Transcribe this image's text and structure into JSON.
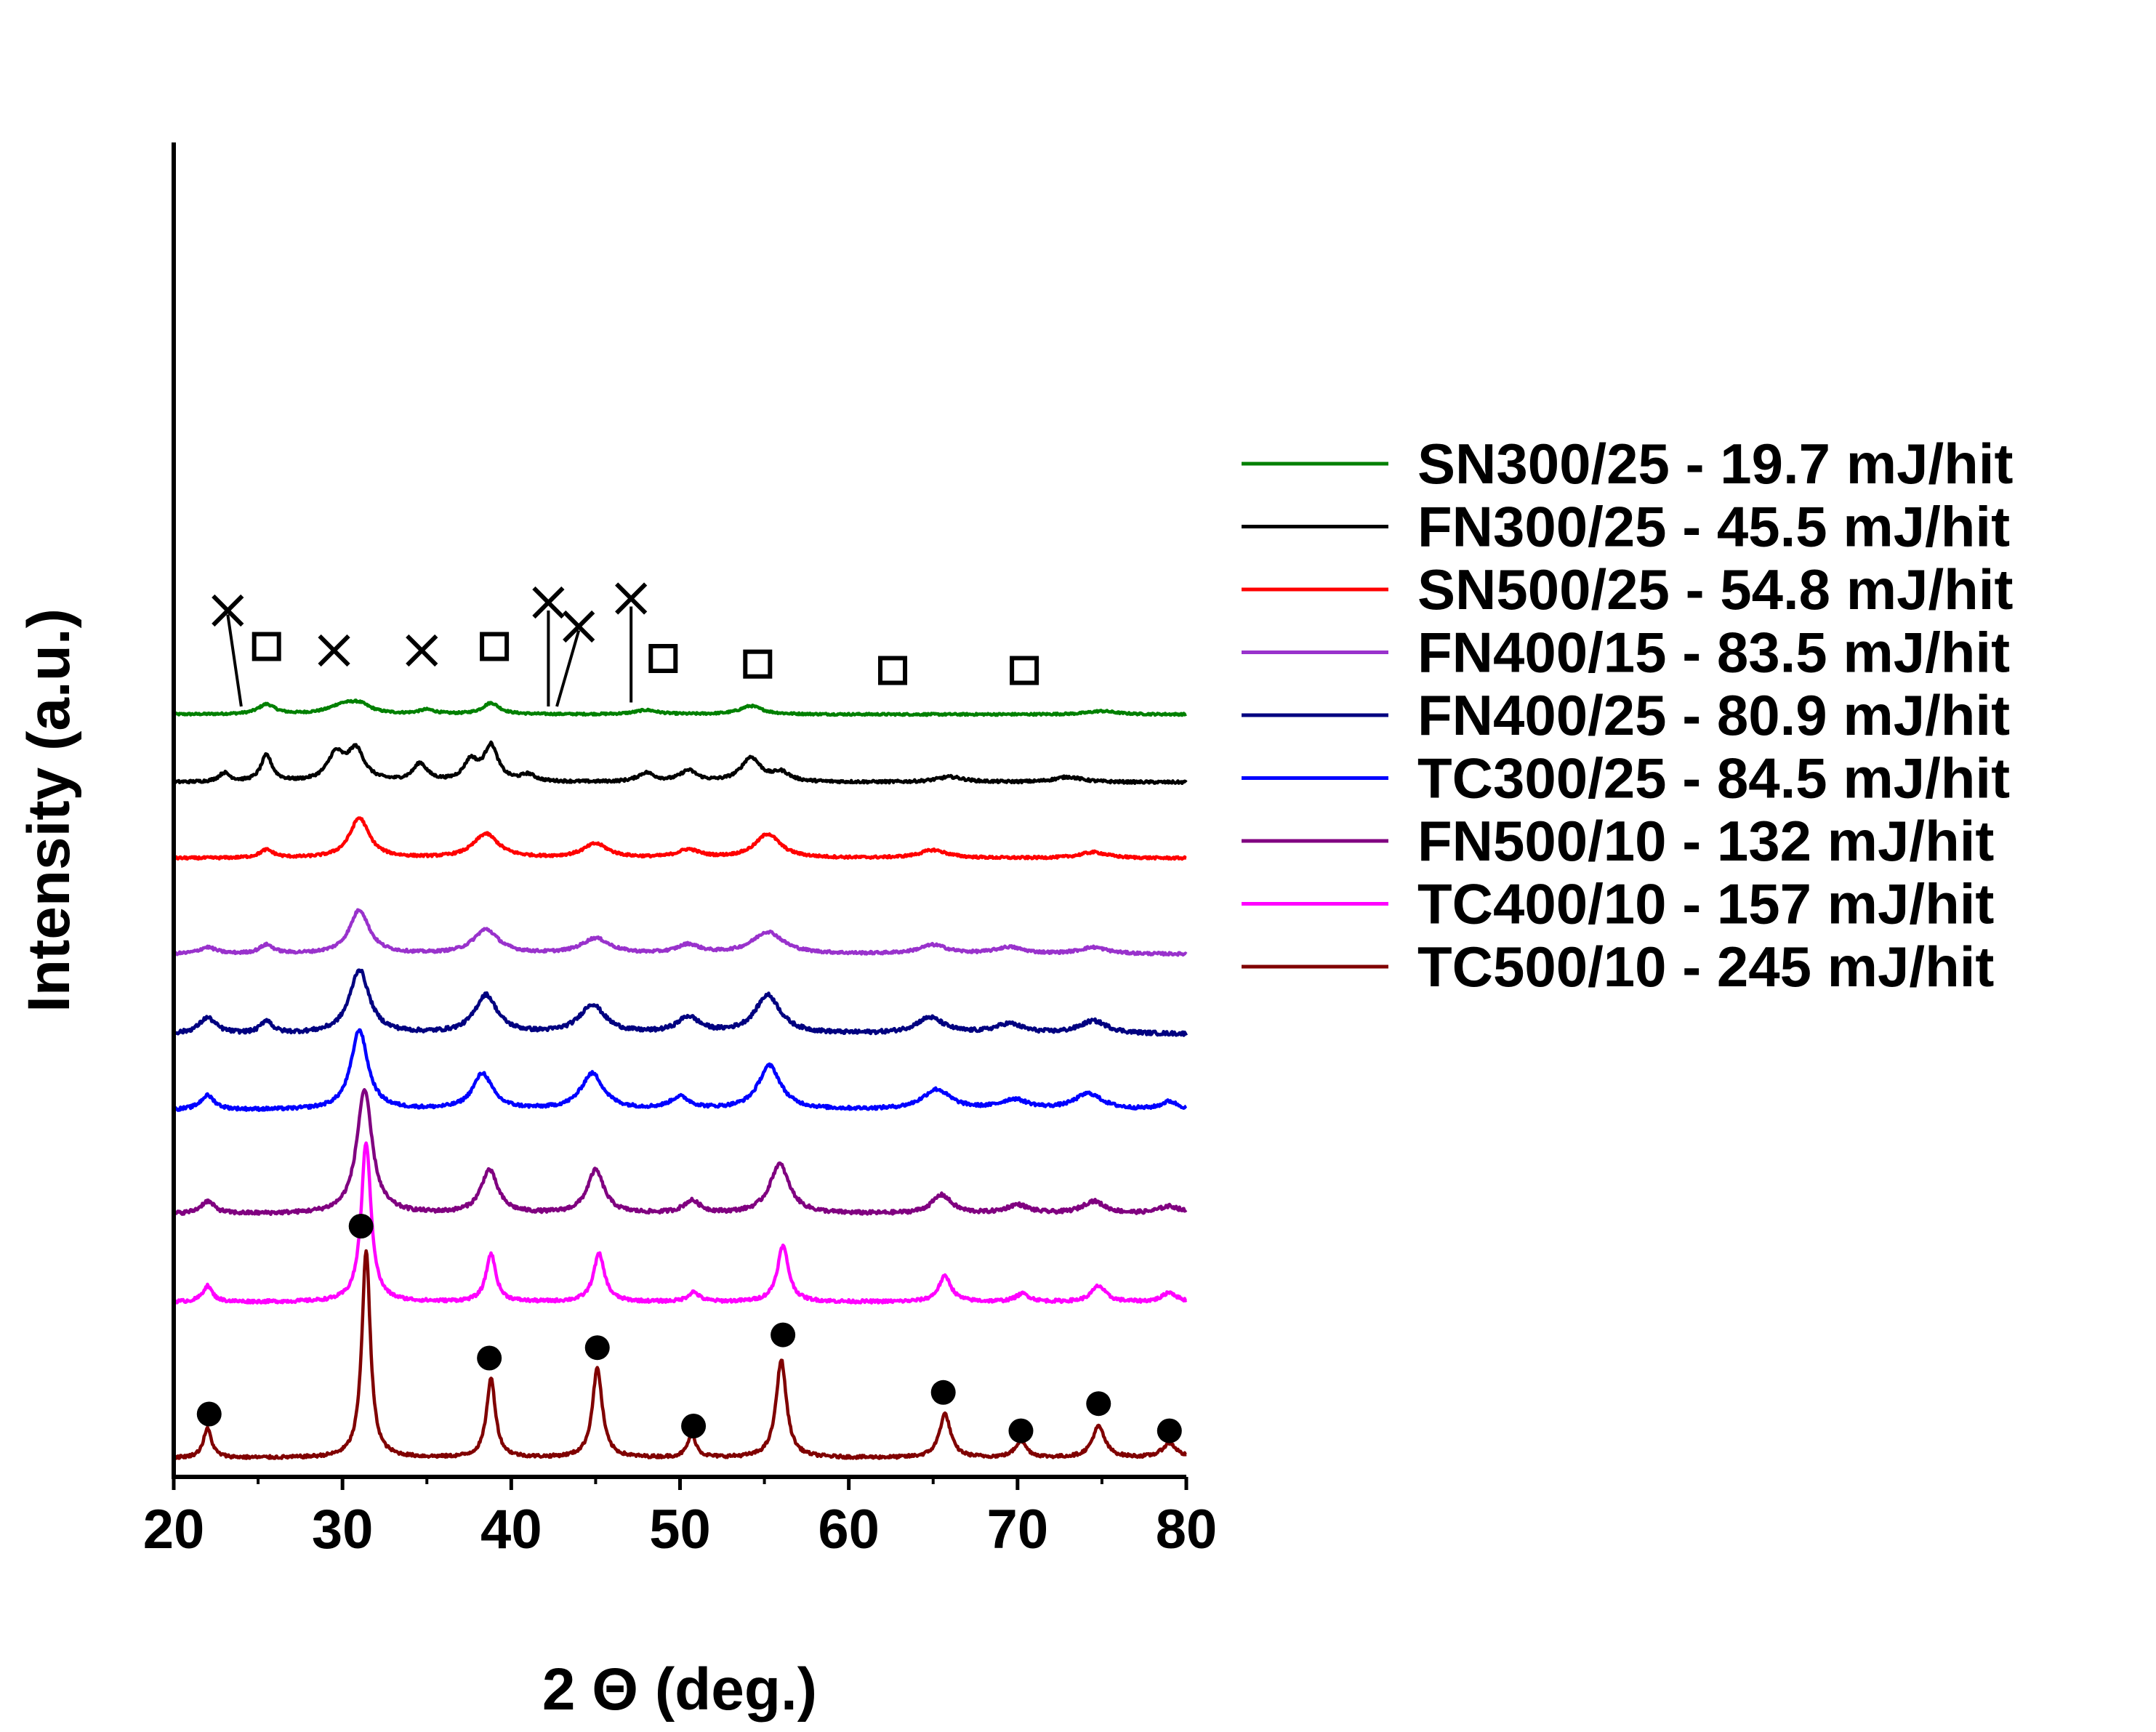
{
  "chart_data": {
    "type": "line",
    "title": "",
    "xlabel": "2 Θ (deg.)",
    "ylabel": "Intensity (a.u.)",
    "xlim": [
      20,
      80
    ],
    "x_ticks": [
      "20",
      "30",
      "40",
      "50",
      "60",
      "70",
      "80"
    ],
    "grid": false,
    "legend_position": "right",
    "series": [
      {
        "name": "SN300/25 - 19.7 mJ/hit",
        "color": "#008000",
        "offset": 9.3,
        "scale": 0.35,
        "noise": 0.07,
        "peaks": [
          [
            25.5,
            0.35,
            0.6
          ],
          [
            30,
            0.3,
            1.0
          ],
          [
            31,
            0.3,
            0.8
          ],
          [
            35,
            0.15,
            0.6
          ],
          [
            38.8,
            0.4,
            0.6
          ],
          [
            48,
            0.15,
            0.8
          ],
          [
            54.2,
            0.3,
            0.8
          ],
          [
            75,
            0.12,
            1.0
          ]
        ]
      },
      {
        "name": "FN300/25 - 45.5 mJ/hit",
        "color": "#000000",
        "offset": 8.45,
        "scale": 0.55,
        "noise": 0.06,
        "peaks": [
          [
            23,
            0.2,
            0.4
          ],
          [
            25.5,
            0.6,
            0.4
          ],
          [
            29.6,
            0.6,
            0.6
          ],
          [
            30.8,
            0.7,
            0.6
          ],
          [
            34.6,
            0.4,
            0.5
          ],
          [
            37.6,
            0.45,
            0.5
          ],
          [
            38.8,
            0.8,
            0.5
          ],
          [
            41,
            0.15,
            0.5
          ],
          [
            48,
            0.2,
            0.6
          ],
          [
            50.5,
            0.25,
            0.6
          ],
          [
            54.2,
            0.55,
            0.7
          ],
          [
            56,
            0.2,
            0.6
          ],
          [
            66,
            0.12,
            1.0
          ],
          [
            73,
            0.12,
            1.0
          ]
        ]
      },
      {
        "name": "SN500/25 - 54.8 mJ/hit",
        "color": "#ff0000",
        "offset": 7.5,
        "scale": 0.5,
        "noise": 0.06,
        "peaks": [
          [
            25.5,
            0.2,
            0.5
          ],
          [
            31,
            1.0,
            0.7
          ],
          [
            38.5,
            0.6,
            0.9
          ],
          [
            45,
            0.35,
            0.9
          ],
          [
            50.5,
            0.2,
            0.8
          ],
          [
            55.2,
            0.6,
            0.9
          ],
          [
            65,
            0.2,
            1.0
          ],
          [
            74.5,
            0.15,
            1.0
          ]
        ]
      },
      {
        "name": "FN400/15 - 83.5 mJ/hit",
        "color": "#9932cc",
        "offset": 6.3,
        "scale": 0.55,
        "noise": 0.06,
        "peaks": [
          [
            22,
            0.15,
            0.6
          ],
          [
            25.5,
            0.2,
            0.5
          ],
          [
            31,
            1.0,
            0.7
          ],
          [
            38.5,
            0.55,
            0.9
          ],
          [
            45,
            0.35,
            1.0
          ],
          [
            50.5,
            0.2,
            0.8
          ],
          [
            55.2,
            0.5,
            1.1
          ],
          [
            65,
            0.2,
            1.0
          ],
          [
            69.5,
            0.15,
            1.0
          ],
          [
            74.5,
            0.15,
            1.0
          ]
        ]
      },
      {
        "name": "FN400/25 - 80.9 mJ/hit",
        "color": "#000080",
        "offset": 5.3,
        "scale": 0.8,
        "noise": 0.06,
        "peaks": [
          [
            22,
            0.25,
            0.6
          ],
          [
            25.5,
            0.2,
            0.4
          ],
          [
            31,
            1.0,
            0.7
          ],
          [
            38.5,
            0.6,
            0.8
          ],
          [
            44.8,
            0.45,
            0.9
          ],
          [
            50.5,
            0.25,
            0.8
          ],
          [
            55.2,
            0.6,
            0.9
          ],
          [
            64.8,
            0.25,
            1.0
          ],
          [
            69.5,
            0.15,
            1.0
          ],
          [
            74.5,
            0.2,
            1.0
          ]
        ]
      },
      {
        "name": "TC300/25 - 84.5 mJ/hit",
        "color": "#0000ff",
        "offset": 4.35,
        "scale": 1.0,
        "noise": 0.04,
        "peaks": [
          [
            22,
            0.18,
            0.5
          ],
          [
            31,
            1.0,
            0.6
          ],
          [
            38.3,
            0.45,
            0.7
          ],
          [
            44.8,
            0.45,
            0.8
          ],
          [
            50,
            0.15,
            0.7
          ],
          [
            55.3,
            0.55,
            0.8
          ],
          [
            65.2,
            0.25,
            1.0
          ],
          [
            69.8,
            0.12,
            1.0
          ],
          [
            74.2,
            0.2,
            1.0
          ],
          [
            79,
            0.1,
            0.6
          ]
        ]
      },
      {
        "name": "FN500/10 - 132 mJ/hit",
        "color": "#800080",
        "offset": 3.05,
        "scale": 1.55,
        "noise": 0.03,
        "peaks": [
          [
            22,
            0.1,
            0.5
          ],
          [
            31.3,
            1.0,
            0.55
          ],
          [
            38.7,
            0.35,
            0.6
          ],
          [
            45,
            0.35,
            0.6
          ],
          [
            50.7,
            0.1,
            0.6
          ],
          [
            55.9,
            0.4,
            0.7
          ],
          [
            65.5,
            0.15,
            0.7
          ],
          [
            70,
            0.07,
            0.8
          ],
          [
            74.5,
            0.1,
            0.8
          ],
          [
            79,
            0.06,
            0.8
          ]
        ]
      },
      {
        "name": "TC400/10 - 157 mJ/hit",
        "color": "#ff00ff",
        "offset": 1.95,
        "scale": 2.0,
        "noise": 0.02,
        "peaks": [
          [
            22,
            0.1,
            0.35
          ],
          [
            31.4,
            1.0,
            0.35
          ],
          [
            38.8,
            0.3,
            0.35
          ],
          [
            45.2,
            0.3,
            0.4
          ],
          [
            50.8,
            0.06,
            0.4
          ],
          [
            56.1,
            0.35,
            0.4
          ],
          [
            65.7,
            0.16,
            0.45
          ],
          [
            70.3,
            0.05,
            0.5
          ],
          [
            74.8,
            0.1,
            0.5
          ],
          [
            79,
            0.06,
            0.5
          ]
        ]
      },
      {
        "name": "TC500/10 - 245 mJ/hit",
        "color": "#800000",
        "offset": 0.0,
        "scale": 2.6,
        "noise": 0.015,
        "peaks": [
          [
            22,
            0.14,
            0.3
          ],
          [
            31.4,
            1.0,
            0.3
          ],
          [
            38.8,
            0.38,
            0.32
          ],
          [
            45.1,
            0.43,
            0.35
          ],
          [
            50.7,
            0.11,
            0.3
          ],
          [
            56,
            0.47,
            0.37
          ],
          [
            65.7,
            0.21,
            0.4
          ],
          [
            70.2,
            0.08,
            0.4
          ],
          [
            74.8,
            0.15,
            0.45
          ],
          [
            79,
            0.07,
            0.5
          ]
        ]
      }
    ],
    "annotations": {
      "cross_markers": [
        {
          "x": 23.2,
          "y": 10.6
        },
        {
          "x": 29.5,
          "y": 10.1
        },
        {
          "x": 34.7,
          "y": 10.1
        },
        {
          "x": 42.2,
          "y": 10.7
        },
        {
          "x": 44.0,
          "y": 10.4
        },
        {
          "x": 47.1,
          "y": 10.75
        }
      ],
      "cross_leaders": [
        [
          23.2,
          10.55,
          24.0,
          9.4
        ],
        [
          42.2,
          10.6,
          42.2,
          9.4
        ],
        [
          44.0,
          10.35,
          42.7,
          9.4
        ],
        [
          47.1,
          10.65,
          47.1,
          9.45
        ]
      ],
      "square_markers": [
        {
          "x": 25.5,
          "y": 10.15
        },
        {
          "x": 39.0,
          "y": 10.15
        },
        {
          "x": 49.0,
          "y": 10.0
        },
        {
          "x": 54.6,
          "y": 9.93
        },
        {
          "x": 62.6,
          "y": 9.85
        },
        {
          "x": 70.4,
          "y": 9.85
        }
      ],
      "dot_markers": [
        {
          "x": 22.1,
          "y": 0.55
        },
        {
          "x": 31.1,
          "y": 2.9
        },
        {
          "x": 38.7,
          "y": 1.25
        },
        {
          "x": 45.1,
          "y": 1.38
        },
        {
          "x": 50.8,
          "y": 0.4
        },
        {
          "x": 56.1,
          "y": 1.54
        },
        {
          "x": 65.6,
          "y": 0.82
        },
        {
          "x": 70.2,
          "y": 0.34
        },
        {
          "x": 74.8,
          "y": 0.68
        },
        {
          "x": 79.0,
          "y": 0.34
        }
      ]
    }
  }
}
